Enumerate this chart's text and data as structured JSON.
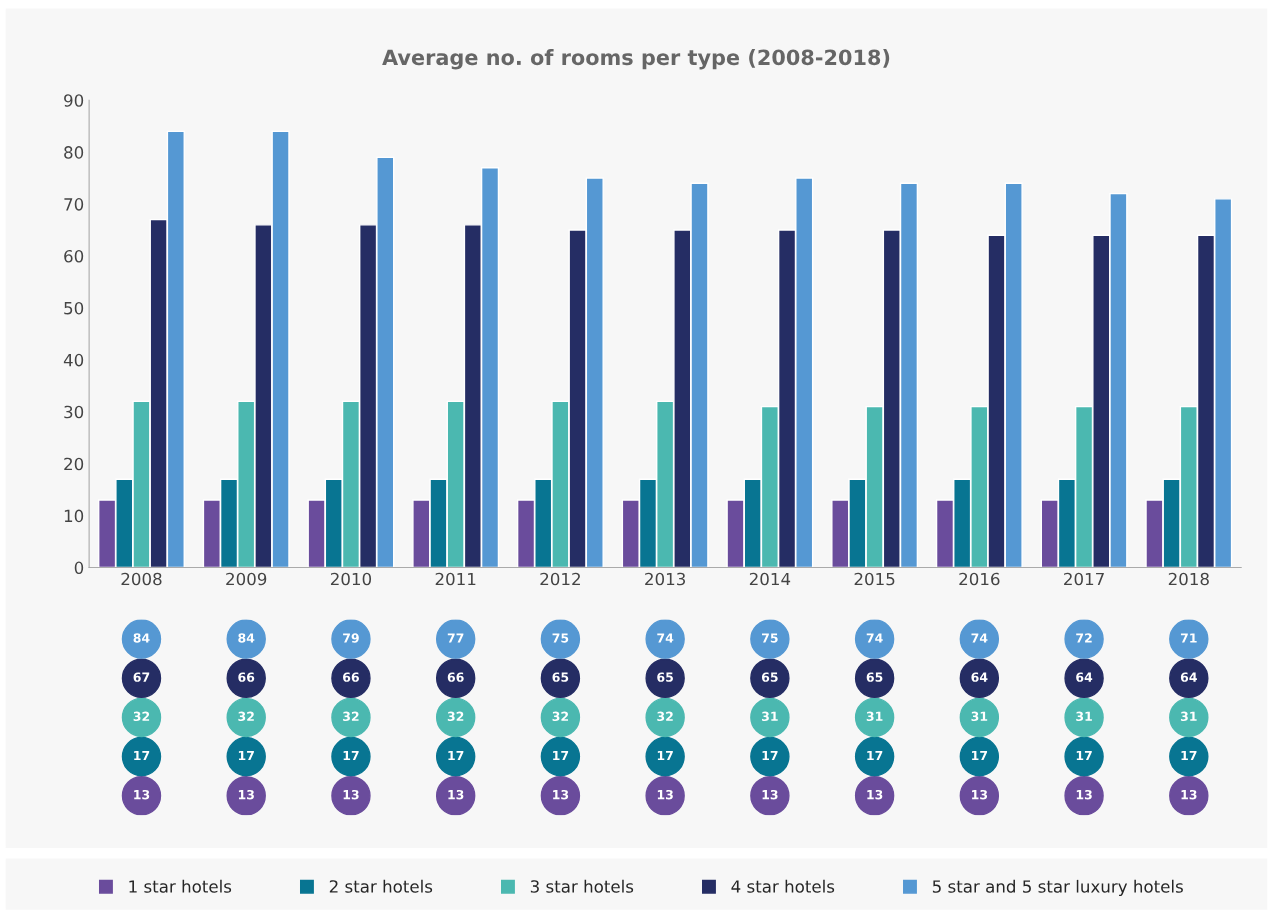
{
  "chart_data": {
    "type": "bar",
    "title": "Average no. of rooms per type (2008-2018)",
    "categories": [
      "2008",
      "2009",
      "2010",
      "2011",
      "2012",
      "2013",
      "2014",
      "2015",
      "2016",
      "2017",
      "2018"
    ],
    "series": [
      {
        "name": "1 star hotels",
        "color": "#6a4c9c",
        "values": [
          13,
          13,
          13,
          13,
          13,
          13,
          13,
          13,
          13,
          13,
          13
        ]
      },
      {
        "name": "2 star hotels",
        "color": "#087592",
        "values": [
          17,
          17,
          17,
          17,
          17,
          17,
          17,
          17,
          17,
          17,
          17
        ]
      },
      {
        "name": "3 star hotels",
        "color": "#4bb8b0",
        "values": [
          32,
          32,
          32,
          32,
          32,
          32,
          31,
          31,
          31,
          31,
          31
        ]
      },
      {
        "name": "4 star hotels",
        "color": "#252d64",
        "values": [
          67,
          66,
          66,
          66,
          65,
          65,
          65,
          65,
          64,
          64,
          64
        ]
      },
      {
        "name": "5 star and 5 star luxury hotels",
        "color": "#5598d3",
        "values": [
          84,
          84,
          79,
          77,
          75,
          74,
          75,
          74,
          74,
          72,
          71
        ]
      }
    ],
    "ylim": [
      0,
      90
    ],
    "yticks": [
      0,
      10,
      20,
      30,
      40,
      50,
      60,
      70,
      80,
      90
    ],
    "data_labels": true,
    "legend": "bottom",
    "grid": false
  }
}
